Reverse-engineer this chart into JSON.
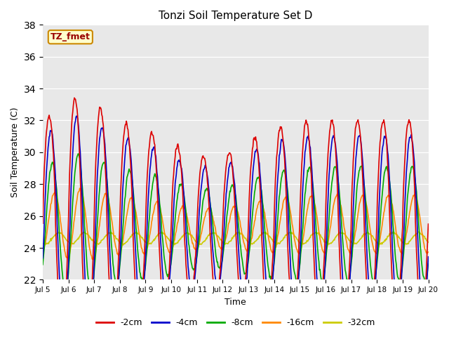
{
  "title": "Tonzi Soil Temperature Set D",
  "xlabel": "Time",
  "ylabel": "Soil Temperature (C)",
  "ylim": [
    22,
    38
  ],
  "yticks": [
    22,
    24,
    26,
    28,
    30,
    32,
    34,
    36,
    38
  ],
  "colors": {
    "-2cm": "#dd0000",
    "-4cm": "#0000cc",
    "-8cm": "#00aa00",
    "-16cm": "#ff8800",
    "-32cm": "#cccc00"
  },
  "legend_label": "TZ_fmet",
  "legend_bg": "#ffffcc",
  "legend_border": "#cc8800",
  "background_color": "#e8e8e8",
  "linewidth": 1.2,
  "n_days": 15,
  "n_pts_per_day": 48
}
